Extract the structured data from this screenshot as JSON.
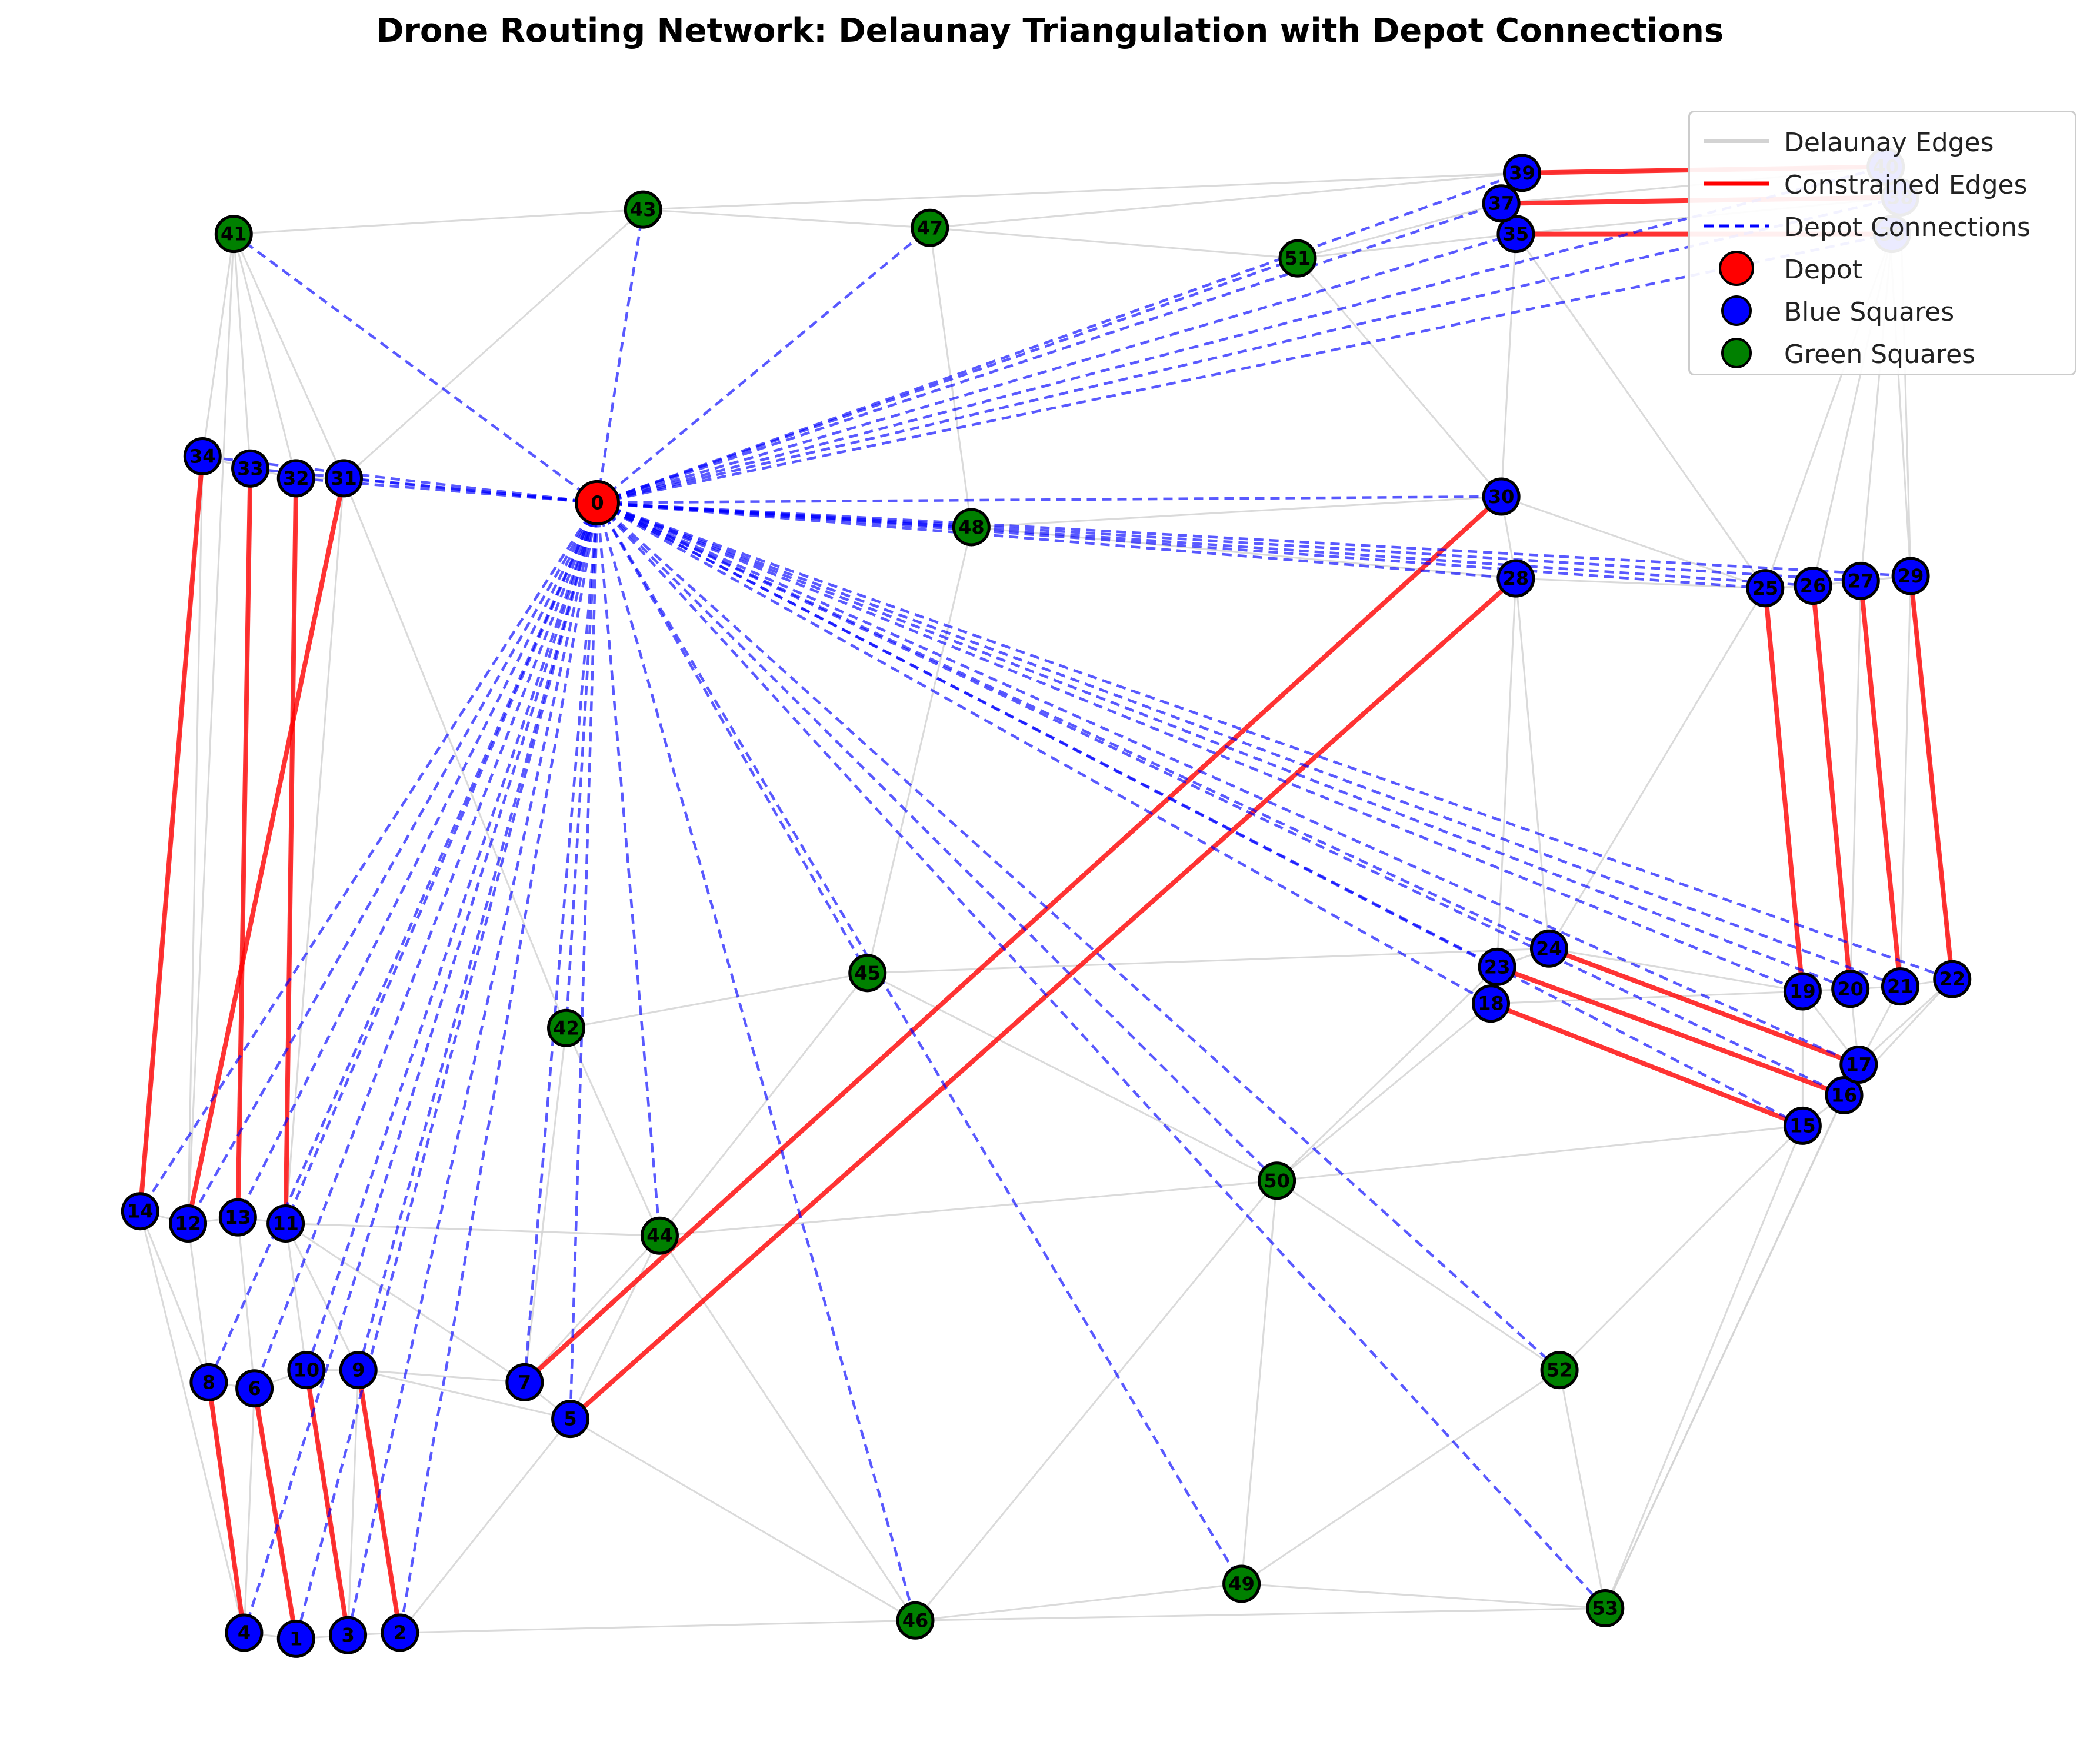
{
  "title": "Drone Routing Network: Delaunay Triangulation with Depot Connections",
  "legend": [
    {
      "label": "Delaunay Edges",
      "kind": "line",
      "color": "#d3d3d3"
    },
    {
      "label": "Constrained Edges",
      "kind": "line",
      "color": "#ff0000"
    },
    {
      "label": "Depot Connections",
      "kind": "dashed",
      "color": "#0000ff"
    },
    {
      "label": "Depot",
      "kind": "marker",
      "color": "#ff0000"
    },
    {
      "label": "Blue Squares",
      "kind": "marker",
      "color": "#0000ff"
    },
    {
      "label": "Green Squares",
      "kind": "marker",
      "color": "#008000"
    }
  ],
  "colors": {
    "depot": "#ff0000",
    "blue": "#0000ff",
    "green": "#008000",
    "delaunay": "#d3d3d3",
    "constrained": "#ff0000",
    "depot_edge": "#0000ff"
  },
  "nodes": [
    {
      "id": "0",
      "type": "depot",
      "x": 3.75,
      "y": 9.4
    },
    {
      "id": "1",
      "type": "blue",
      "x": 2.3,
      "y": 0.1
    },
    {
      "id": "2",
      "type": "blue",
      "x": 2.8,
      "y": 0.15
    },
    {
      "id": "3",
      "type": "blue",
      "x": 2.55,
      "y": 0.13
    },
    {
      "id": "4",
      "type": "blue",
      "x": 2.05,
      "y": 0.15
    },
    {
      "id": "5",
      "type": "blue",
      "x": 3.62,
      "y": 1.9
    },
    {
      "id": "6",
      "type": "blue",
      "x": 2.1,
      "y": 2.15
    },
    {
      "id": "7",
      "type": "blue",
      "x": 3.4,
      "y": 2.2
    },
    {
      "id": "8",
      "type": "blue",
      "x": 1.88,
      "y": 2.2
    },
    {
      "id": "9",
      "type": "blue",
      "x": 2.6,
      "y": 2.3
    },
    {
      "id": "10",
      "type": "blue",
      "x": 2.35,
      "y": 2.3
    },
    {
      "id": "11",
      "type": "blue",
      "x": 2.25,
      "y": 3.5
    },
    {
      "id": "12",
      "type": "blue",
      "x": 1.78,
      "y": 3.5
    },
    {
      "id": "13",
      "type": "blue",
      "x": 2.02,
      "y": 3.55
    },
    {
      "id": "14",
      "type": "blue",
      "x": 1.55,
      "y": 3.6
    },
    {
      "id": "15",
      "type": "blue",
      "x": 9.55,
      "y": 4.3
    },
    {
      "id": "16",
      "type": "blue",
      "x": 9.75,
      "y": 4.55
    },
    {
      "id": "17",
      "type": "blue",
      "x": 9.82,
      "y": 4.8
    },
    {
      "id": "18",
      "type": "blue",
      "x": 8.05,
      "y": 5.3
    },
    {
      "id": "19",
      "type": "blue",
      "x": 9.55,
      "y": 5.4
    },
    {
      "id": "20",
      "type": "blue",
      "x": 9.78,
      "y": 5.42
    },
    {
      "id": "21",
      "type": "blue",
      "x": 10.02,
      "y": 5.44
    },
    {
      "id": "22",
      "type": "blue",
      "x": 10.27,
      "y": 5.5
    },
    {
      "id": "23",
      "type": "blue",
      "x": 8.08,
      "y": 5.6
    },
    {
      "id": "24",
      "type": "blue",
      "x": 8.33,
      "y": 5.75
    },
    {
      "id": "25",
      "type": "blue",
      "x": 9.37,
      "y": 8.7
    },
    {
      "id": "26",
      "type": "blue",
      "x": 9.6,
      "y": 8.72
    },
    {
      "id": "27",
      "type": "blue",
      "x": 9.83,
      "y": 8.76
    },
    {
      "id": "28",
      "type": "blue",
      "x": 8.17,
      "y": 8.78
    },
    {
      "id": "29",
      "type": "blue",
      "x": 10.07,
      "y": 8.8
    },
    {
      "id": "30",
      "type": "blue",
      "x": 8.1,
      "y": 9.45
    },
    {
      "id": "31",
      "type": "blue",
      "x": 2.53,
      "y": 9.6
    },
    {
      "id": "32",
      "type": "blue",
      "x": 2.3,
      "y": 9.6
    },
    {
      "id": "33",
      "type": "blue",
      "x": 2.08,
      "y": 9.68
    },
    {
      "id": "34",
      "type": "blue",
      "x": 1.85,
      "y": 9.78
    },
    {
      "id": "35",
      "type": "blue",
      "x": 8.17,
      "y": 11.6
    },
    {
      "id": "36",
      "type": "blue",
      "x": 9.98,
      "y": 11.6
    },
    {
      "id": "37",
      "type": "blue",
      "x": 8.1,
      "y": 11.85
    },
    {
      "id": "38",
      "type": "blue",
      "x": 10.02,
      "y": 11.9
    },
    {
      "id": "39",
      "type": "blue",
      "x": 8.2,
      "y": 12.1
    },
    {
      "id": "40",
      "type": "blue",
      "x": 9.95,
      "y": 12.15
    },
    {
      "id": "41",
      "type": "green",
      "x": 2.0,
      "y": 11.6
    },
    {
      "id": "42",
      "type": "green",
      "x": 3.6,
      "y": 5.1
    },
    {
      "id": "43",
      "type": "green",
      "x": 3.97,
      "y": 11.8
    },
    {
      "id": "44",
      "type": "green",
      "x": 4.05,
      "y": 3.4
    },
    {
      "id": "45",
      "type": "green",
      "x": 5.05,
      "y": 5.55
    },
    {
      "id": "46",
      "type": "green",
      "x": 5.28,
      "y": 0.25
    },
    {
      "id": "47",
      "type": "green",
      "x": 5.35,
      "y": 11.65
    },
    {
      "id": "48",
      "type": "green",
      "x": 5.55,
      "y": 9.2
    },
    {
      "id": "49",
      "type": "green",
      "x": 6.85,
      "y": 0.55
    },
    {
      "id": "50",
      "type": "green",
      "x": 7.02,
      "y": 3.85
    },
    {
      "id": "51",
      "type": "green",
      "x": 7.12,
      "y": 11.4
    },
    {
      "id": "52",
      "type": "green",
      "x": 8.38,
      "y": 2.3
    },
    {
      "id": "53",
      "type": "green",
      "x": 8.6,
      "y": 0.35
    }
  ],
  "constrained_edges": [
    [
      "34",
      "14"
    ],
    [
      "33",
      "13"
    ],
    [
      "32",
      "11"
    ],
    [
      "31",
      "12"
    ],
    [
      "8",
      "4"
    ],
    [
      "6",
      "1"
    ],
    [
      "10",
      "3"
    ],
    [
      "9",
      "2"
    ],
    [
      "7",
      "30"
    ],
    [
      "5",
      "28"
    ],
    [
      "23",
      "16"
    ],
    [
      "18",
      "15"
    ],
    [
      "24",
      "17"
    ],
    [
      "25",
      "19"
    ],
    [
      "26",
      "20"
    ],
    [
      "27",
      "21"
    ],
    [
      "29",
      "22"
    ],
    [
      "39",
      "40"
    ],
    [
      "37",
      "38"
    ],
    [
      "35",
      "36"
    ]
  ],
  "delaunay_edges": [
    [
      "41",
      "43"
    ],
    [
      "43",
      "47"
    ],
    [
      "43",
      "39"
    ],
    [
      "47",
      "51"
    ],
    [
      "47",
      "39"
    ],
    [
      "51",
      "37"
    ],
    [
      "51",
      "35"
    ],
    [
      "51",
      "30"
    ],
    [
      "39",
      "40"
    ],
    [
      "40",
      "38"
    ],
    [
      "38",
      "36"
    ],
    [
      "37",
      "40"
    ],
    [
      "35",
      "38"
    ],
    [
      "41",
      "34"
    ],
    [
      "41",
      "33"
    ],
    [
      "41",
      "32"
    ],
    [
      "41",
      "31"
    ],
    [
      "41",
      "12"
    ],
    [
      "43",
      "31"
    ],
    [
      "34",
      "33"
    ],
    [
      "33",
      "32"
    ],
    [
      "32",
      "31"
    ],
    [
      "34",
      "14"
    ],
    [
      "34",
      "12"
    ],
    [
      "33",
      "13"
    ],
    [
      "32",
      "11"
    ],
    [
      "31",
      "11"
    ],
    [
      "31",
      "42"
    ],
    [
      "14",
      "12"
    ],
    [
      "12",
      "13"
    ],
    [
      "13",
      "11"
    ],
    [
      "14",
      "8"
    ],
    [
      "14",
      "4"
    ],
    [
      "12",
      "8"
    ],
    [
      "13",
      "6"
    ],
    [
      "11",
      "10"
    ],
    [
      "11",
      "9"
    ],
    [
      "11",
      "44"
    ],
    [
      "11",
      "7"
    ],
    [
      "8",
      "6"
    ],
    [
      "8",
      "4"
    ],
    [
      "6",
      "10"
    ],
    [
      "6",
      "4"
    ],
    [
      "6",
      "1"
    ],
    [
      "10",
      "9"
    ],
    [
      "10",
      "3"
    ],
    [
      "9",
      "7"
    ],
    [
      "9",
      "5"
    ],
    [
      "9",
      "2"
    ],
    [
      "9",
      "3"
    ],
    [
      "4",
      "1"
    ],
    [
      "1",
      "3"
    ],
    [
      "3",
      "2"
    ],
    [
      "2",
      "46"
    ],
    [
      "2",
      "5"
    ],
    [
      "7",
      "5"
    ],
    [
      "7",
      "44"
    ],
    [
      "5",
      "44"
    ],
    [
      "5",
      "46"
    ],
    [
      "42",
      "44"
    ],
    [
      "42",
      "45"
    ],
    [
      "42",
      "7"
    ],
    [
      "44",
      "45"
    ],
    [
      "44",
      "50"
    ],
    [
      "44",
      "46"
    ],
    [
      "45",
      "48"
    ],
    [
      "45",
      "24"
    ],
    [
      "45",
      "50"
    ],
    [
      "48",
      "47"
    ],
    [
      "48",
      "30"
    ],
    [
      "48",
      "28"
    ],
    [
      "46",
      "49"
    ],
    [
      "46",
      "50"
    ],
    [
      "46",
      "53"
    ],
    [
      "49",
      "53"
    ],
    [
      "49",
      "50"
    ],
    [
      "49",
      "52"
    ],
    [
      "52",
      "53"
    ],
    [
      "52",
      "50"
    ],
    [
      "52",
      "15"
    ],
    [
      "50",
      "18"
    ],
    [
      "50",
      "15"
    ],
    [
      "50",
      "23"
    ],
    [
      "18",
      "23"
    ],
    [
      "18",
      "19"
    ],
    [
      "23",
      "24"
    ],
    [
      "24",
      "28"
    ],
    [
      "24",
      "25"
    ],
    [
      "24",
      "19"
    ],
    [
      "23",
      "28"
    ],
    [
      "28",
      "30"
    ],
    [
      "28",
      "25"
    ],
    [
      "30",
      "25"
    ],
    [
      "30",
      "35"
    ],
    [
      "35",
      "25"
    ],
    [
      "36",
      "26"
    ],
    [
      "36",
      "27"
    ],
    [
      "38",
      "29"
    ],
    [
      "40",
      "29"
    ],
    [
      "36",
      "25"
    ],
    [
      "25",
      "26"
    ],
    [
      "26",
      "27"
    ],
    [
      "27",
      "29"
    ],
    [
      "19",
      "20"
    ],
    [
      "20",
      "21"
    ],
    [
      "21",
      "22"
    ],
    [
      "19",
      "17"
    ],
    [
      "20",
      "17"
    ],
    [
      "21",
      "17"
    ],
    [
      "22",
      "17"
    ],
    [
      "22",
      "16"
    ],
    [
      "22",
      "29"
    ],
    [
      "17",
      "16"
    ],
    [
      "16",
      "15"
    ],
    [
      "15",
      "19"
    ],
    [
      "15",
      "53"
    ],
    [
      "16",
      "53"
    ],
    [
      "17",
      "53"
    ],
    [
      "27",
      "20"
    ],
    [
      "29",
      "21"
    ]
  ],
  "depot_connections": [
    "1",
    "2",
    "3",
    "4",
    "5",
    "6",
    "7",
    "8",
    "9",
    "10",
    "11",
    "12",
    "13",
    "14",
    "15",
    "16",
    "17",
    "18",
    "19",
    "20",
    "21",
    "22",
    "23",
    "24",
    "25",
    "26",
    "27",
    "28",
    "29",
    "30",
    "31",
    "32",
    "33",
    "34",
    "35",
    "36",
    "37",
    "38",
    "39",
    "40",
    "41",
    "42",
    "43",
    "44",
    "45",
    "46",
    "47",
    "48",
    "49",
    "50",
    "51",
    "52",
    "53"
  ],
  "plot_range": {
    "x": [
      1.3,
      10.5
    ],
    "y": [
      -0.5,
      12.6
    ]
  }
}
